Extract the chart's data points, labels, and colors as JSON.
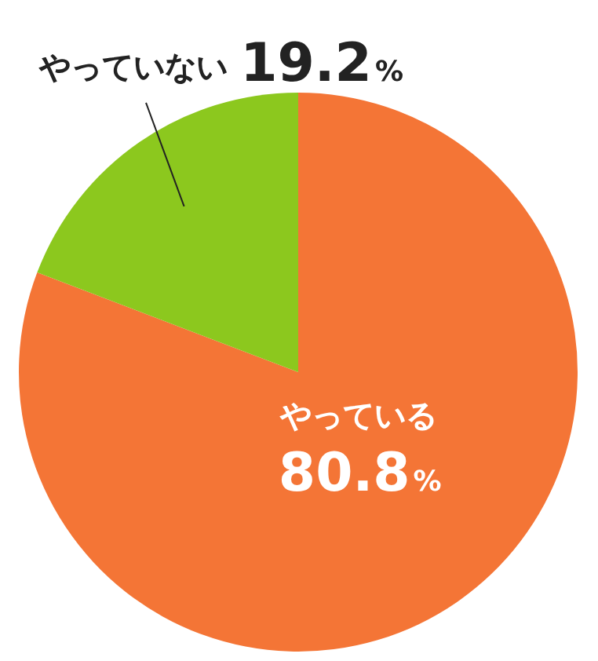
{
  "chart_data": {
    "type": "pie",
    "categories": [
      "やっている",
      "やっていない"
    ],
    "values": [
      80.8,
      19.2
    ],
    "colors": [
      "#f47536",
      "#8cc81e"
    ],
    "value_labels": [
      "80.8%",
      "19.2%"
    ],
    "legend": false
  }
}
